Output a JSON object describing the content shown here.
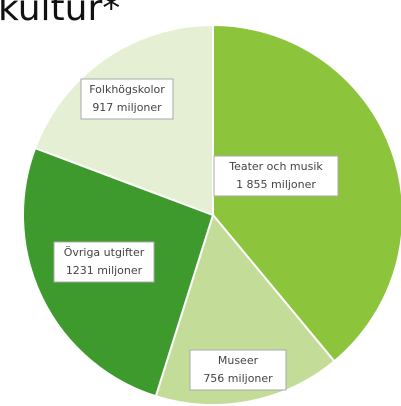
{
  "chart_data": {
    "type": "pie",
    "title": "kultur*",
    "categories": [
      "Teater och musik",
      "Museer",
      "Övriga utgifter",
      "Folkhögskolor"
    ],
    "values": [
      1855,
      756,
      1231,
      917
    ],
    "value_labels": [
      "1 855 miljoner",
      "756 miljoner",
      "1231 miljoner",
      "917 miljoner"
    ],
    "colors": [
      "#8cc43c",
      "#c3dc98",
      "#3e9a2c",
      "#e5efd3"
    ]
  }
}
